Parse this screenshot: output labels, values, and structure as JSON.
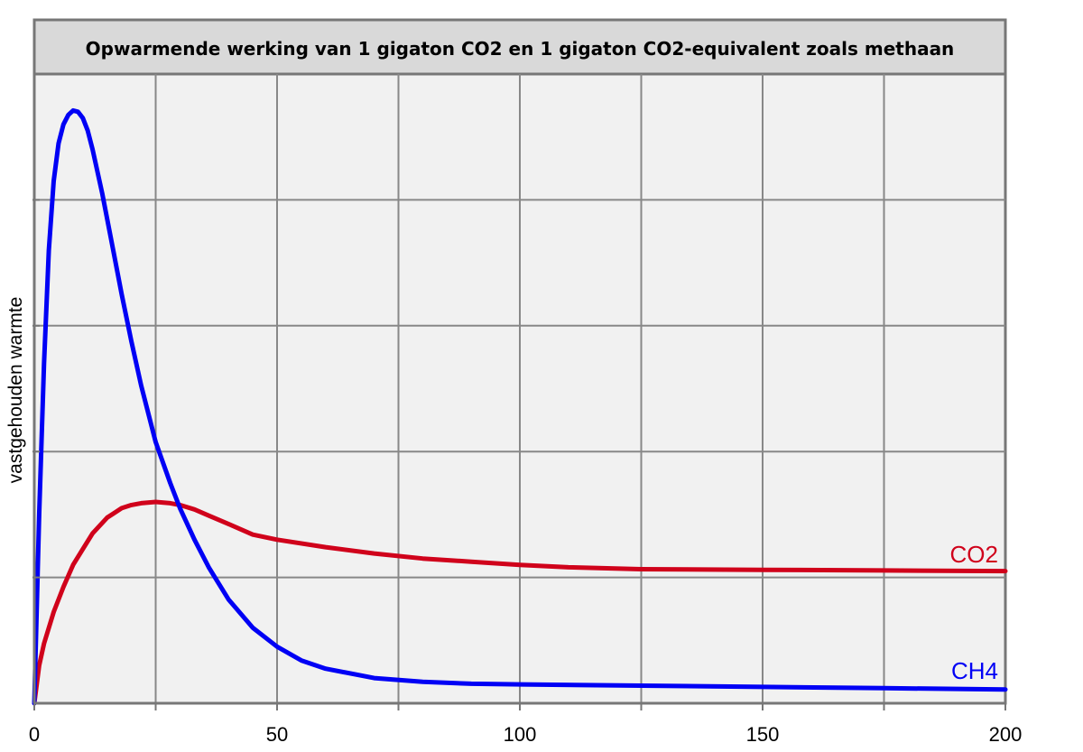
{
  "chart_data": {
    "type": "line",
    "title": "Opwarmende werking van 1 gigaton CO2 en 1 gigaton CO2-equivalent zoals methaan",
    "xlabel": "",
    "ylabel": "vastgehouden warmte",
    "xlim": [
      0,
      200
    ],
    "ylim": [
      0,
      10
    ],
    "xticks": [
      0,
      50,
      100,
      150,
      200
    ],
    "grid": true,
    "series": [
      {
        "name": "CO2",
        "color": "#d0021b",
        "x": [
          0,
          1,
          2,
          4,
          6,
          8,
          10,
          12,
          15,
          18,
          20,
          22,
          25,
          28,
          30,
          33,
          36,
          40,
          45,
          50,
          60,
          70,
          80,
          90,
          100,
          110,
          125,
          150,
          175,
          200
        ],
        "y": [
          0,
          0.6,
          0.95,
          1.45,
          1.85,
          2.2,
          2.45,
          2.7,
          2.95,
          3.1,
          3.15,
          3.18,
          3.2,
          3.18,
          3.15,
          3.08,
          2.98,
          2.85,
          2.68,
          2.6,
          2.48,
          2.38,
          2.3,
          2.25,
          2.2,
          2.16,
          2.13,
          2.12,
          2.11,
          2.1
        ]
      },
      {
        "name": "CH4",
        "color": "#0000f5",
        "x": [
          0,
          1,
          2,
          3,
          4,
          5,
          6,
          7,
          8,
          9,
          10,
          11,
          12,
          14,
          16,
          18,
          20,
          22,
          25,
          28,
          30,
          33,
          36,
          40,
          45,
          50,
          55,
          60,
          70,
          80,
          90,
          100,
          125,
          150,
          175,
          200
        ],
        "y": [
          0,
          3.0,
          5.4,
          7.2,
          8.3,
          8.9,
          9.2,
          9.35,
          9.42,
          9.4,
          9.3,
          9.1,
          8.8,
          8.1,
          7.3,
          6.5,
          5.75,
          5.05,
          4.15,
          3.5,
          3.1,
          2.6,
          2.15,
          1.65,
          1.2,
          0.9,
          0.68,
          0.55,
          0.4,
          0.34,
          0.31,
          0.3,
          0.28,
          0.26,
          0.24,
          0.22
        ]
      }
    ]
  }
}
